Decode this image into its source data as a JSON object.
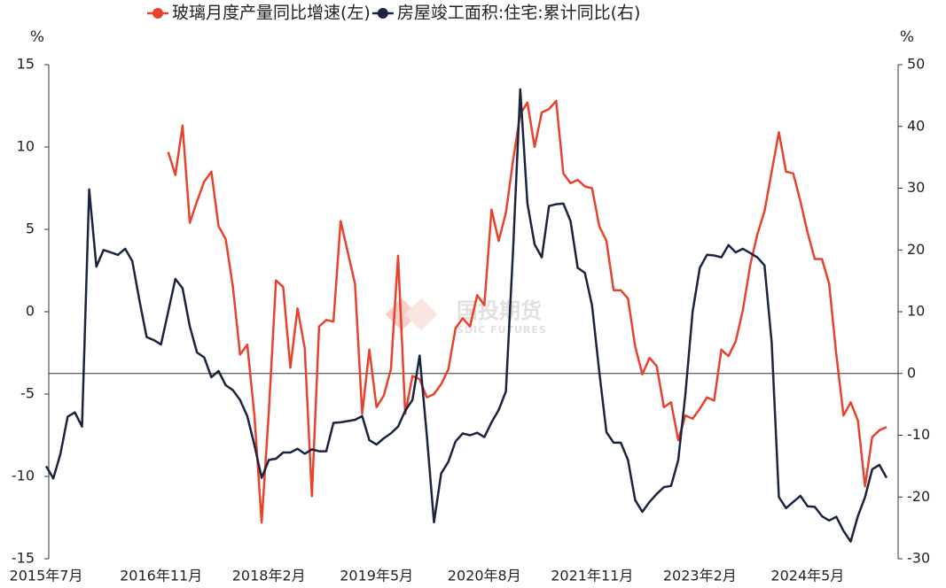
{
  "chart_data": {
    "type": "line",
    "ylabel": "%",
    "y2label": "%",
    "watermark": {
      "text": "国投期货",
      "subtext": "SDIC FUTURES"
    },
    "categories": [
      "2015年7月",
      null,
      null,
      null,
      null,
      null,
      null,
      null,
      null,
      null,
      null,
      null,
      null,
      null,
      null,
      null,
      "2016年11月",
      null,
      null,
      null,
      null,
      null,
      null,
      null,
      null,
      null,
      null,
      null,
      null,
      null,
      null,
      "2018年2月",
      null,
      null,
      null,
      null,
      null,
      null,
      null,
      null,
      null,
      null,
      null,
      null,
      null,
      null,
      "2019年5月",
      null,
      null,
      null,
      null,
      null,
      null,
      null,
      null,
      null,
      null,
      null,
      null,
      null,
      null,
      "2020年8月",
      null,
      null,
      null,
      null,
      null,
      null,
      null,
      null,
      null,
      null,
      null,
      null,
      null,
      null,
      "2021年11月",
      null,
      null,
      null,
      null,
      null,
      null,
      null,
      null,
      null,
      null,
      null,
      null,
      null,
      null,
      "2023年2月",
      null,
      null,
      null,
      null,
      null,
      null,
      null,
      null,
      null,
      null,
      null,
      null,
      null,
      null,
      "2024年5月",
      null,
      null,
      null,
      null,
      null,
      null,
      null,
      null,
      null,
      null,
      null
    ],
    "series": [
      {
        "name": "玻璃月度产量同比增速(左)",
        "color": "#e8412c",
        "values": [
          null,
          null,
          null,
          null,
          null,
          null,
          null,
          null,
          null,
          null,
          null,
          null,
          null,
          null,
          null,
          null,
          null,
          9.7,
          8.3,
          11.3,
          5.4,
          6.7,
          7.9,
          8.5,
          5.2,
          4.4,
          1.5,
          -2.6,
          -2,
          -6.3,
          -12.8,
          -6.1,
          1.9,
          1.5,
          -3.4,
          0.2,
          -2.2,
          -11.2,
          -0.9,
          -0.5,
          -0.6,
          5.5,
          3.6,
          1.7,
          -6.2,
          -2.3,
          -5.8,
          -5.1,
          -3.5,
          3.4,
          -6.2,
          -3.9,
          -4.1,
          -5.2,
          -5,
          -4.4,
          -3.5,
          -1,
          -0.4,
          -0.9,
          1,
          0.4,
          6.2,
          4.3,
          6,
          9.2,
          12,
          12.7,
          10,
          12.1,
          12.3,
          12.8,
          8.4,
          7.8,
          8,
          7.6,
          7.5,
          5.2,
          4.3,
          1.3,
          1.3,
          0.8,
          -2.1,
          -3.8,
          -2.8,
          -3.3,
          -5.8,
          -5.5,
          -7.8,
          -6.3,
          -6.5,
          -5.9,
          -5.2,
          -5.4,
          -2.3,
          -2.7,
          -1.8,
          0.1,
          2.8,
          4.7,
          6.1,
          8.5,
          10.9,
          8.5,
          8.4,
          6.7,
          4.8,
          3.2,
          3.2,
          1.7,
          -2.6,
          -6.3,
          -5.5,
          -6.6,
          -10.6,
          -7.6,
          -7.2,
          -7
        ]
      },
      {
        "name": "房屋竣工面积:住宅:累计同比(右)",
        "color": "#1a2340",
        "axis": "y2",
        "values": [
          -15,
          -17,
          -13,
          -7,
          -6.3,
          -8.6,
          29.8,
          17.3,
          20,
          19.6,
          19.2,
          20.2,
          18.2,
          11.8,
          5.9,
          5.4,
          4.7,
          10,
          15.3,
          13.8,
          7.6,
          3.4,
          2.6,
          -0.6,
          0.4,
          -1.9,
          -2.7,
          -4.3,
          -6.9,
          -11.6,
          -16.9,
          -14,
          -13.8,
          -12.8,
          -12.8,
          -12.2,
          -13,
          -12.3,
          -12.6,
          -12.6,
          -8,
          -7.9,
          -7.7,
          -7.5,
          -6.9,
          -10.8,
          -11.5,
          -10.5,
          -9.7,
          -8.6,
          -6,
          -4.3,
          2.9,
          -10,
          -24.1,
          -16.2,
          -14.3,
          -11,
          -9.7,
          -10,
          -9.6,
          -10.3,
          -7.9,
          -5.9,
          -2.9,
          20,
          46,
          27.5,
          20.9,
          18.8,
          27.1,
          27.4,
          27.5,
          24.7,
          17.1,
          16.3,
          11,
          0.3,
          -9.5,
          -11.2,
          -11.2,
          -14,
          -20.5,
          -22.4,
          -20.8,
          -19.5,
          -18.4,
          -18.2,
          -14,
          -3.3,
          10,
          17.1,
          19.2,
          19.1,
          18.8,
          20.8,
          19.6,
          20.2,
          19.5,
          18.8,
          17.5,
          5,
          -20,
          -21.8,
          -20.8,
          -19.8,
          -21.5,
          -21.6,
          -23.1,
          -23.8,
          -23.2,
          -25.5,
          -27.2,
          -23.1,
          -20,
          -15.5,
          -14.8,
          -16.9
        ]
      }
    ],
    "ylim": [
      -15,
      15
    ],
    "yticks": [
      -15,
      -10,
      -5,
      0,
      5,
      10,
      15
    ],
    "y2lim": [
      -30,
      50
    ],
    "y2ticks": [
      -30,
      -20,
      -10,
      0,
      10,
      20,
      30,
      40,
      50
    ]
  }
}
